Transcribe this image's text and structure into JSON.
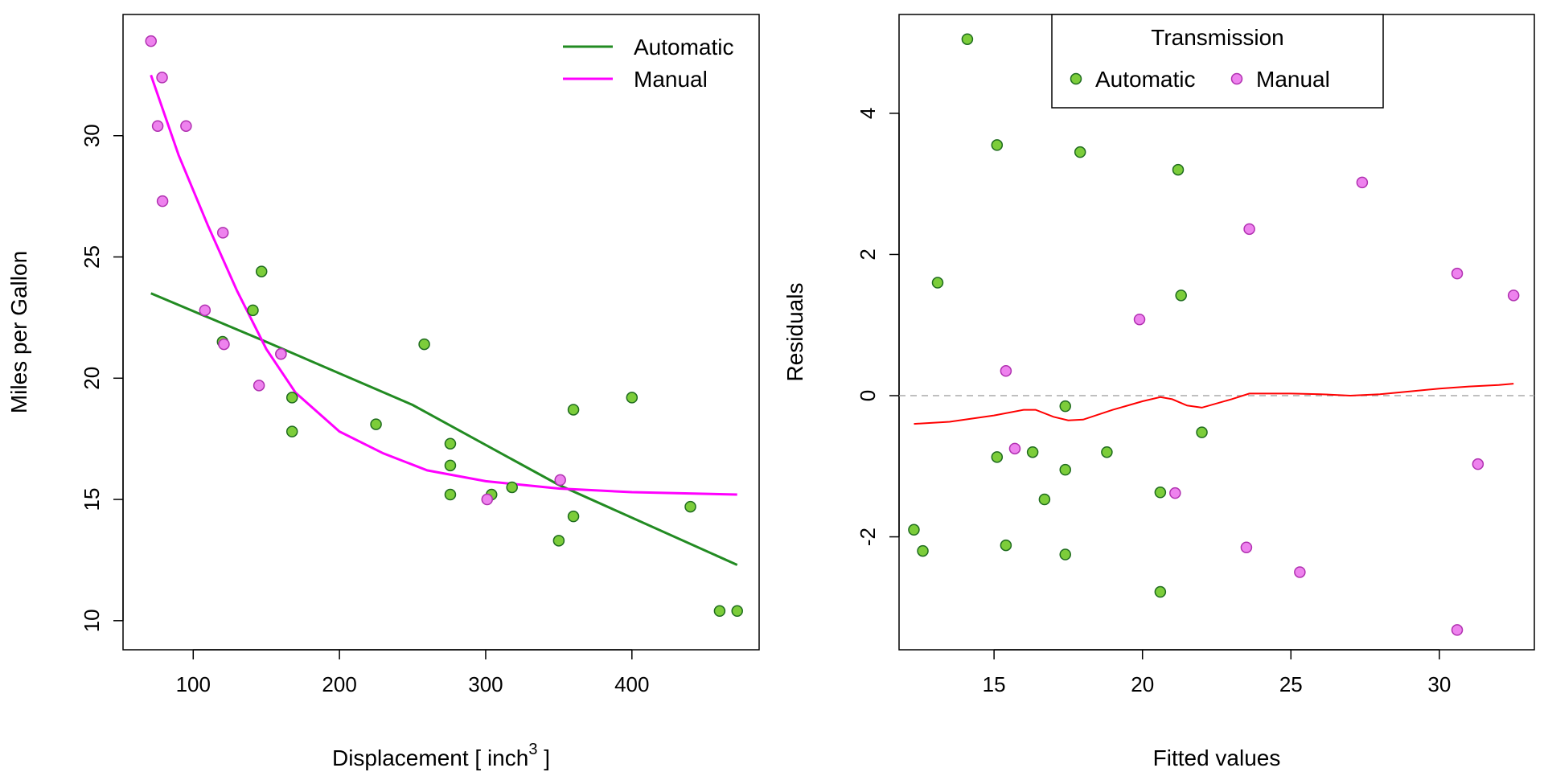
{
  "chart_data": [
    {
      "type": "scatter",
      "xlabel": "Displacement [ inch",
      "xlabel_superscript": "3",
      "xlabel_suffix": " ]",
      "ylabel": "Miles per Gallon",
      "xlim": [
        52,
        487
      ],
      "ylim": [
        8.8,
        35.0
      ],
      "xticks": [
        100,
        200,
        300,
        400
      ],
      "yticks": [
        10,
        15,
        20,
        25,
        30
      ],
      "grid": false,
      "legend": {
        "position": "top-right",
        "entries": [
          {
            "label": "Automatic",
            "color": "#228B22"
          },
          {
            "label": "Manual",
            "color": "#FF00FF"
          }
        ]
      },
      "series": [
        {
          "name": "Automatic",
          "point_color": "#7CCD3A",
          "edge_color": "#1E6B1E",
          "points": [
            [
              146.7,
              24.4
            ],
            [
              140.8,
              22.8
            ],
            [
              120.1,
              21.5
            ],
            [
              258,
              21.4
            ],
            [
              400,
              19.2
            ],
            [
              167.6,
              19.2
            ],
            [
              225,
              18.1
            ],
            [
              360,
              18.7
            ],
            [
              167.6,
              17.8
            ],
            [
              275.8,
              17.3
            ],
            [
              275.8,
              16.4
            ],
            [
              304,
              15.2
            ],
            [
              318,
              15.5
            ],
            [
              275.8,
              15.2
            ],
            [
              360,
              14.3
            ],
            [
              440,
              14.7
            ],
            [
              350,
              13.3
            ],
            [
              460,
              10.4
            ],
            [
              472,
              10.4
            ]
          ]
        },
        {
          "name": "Manual",
          "point_color": "#EE82EE",
          "edge_color": "#B030B0",
          "points": [
            [
              71.1,
              33.9
            ],
            [
              78.7,
              32.4
            ],
            [
              75.7,
              30.4
            ],
            [
              95.1,
              30.4
            ],
            [
              79,
              27.3
            ],
            [
              120.3,
              26.0
            ],
            [
              108,
              22.8
            ],
            [
              160,
              21.0
            ],
            [
              121,
              21.4
            ],
            [
              145,
              19.7
            ],
            [
              351,
              15.8
            ],
            [
              301,
              15.0
            ],
            [
              160,
              21.0
            ]
          ]
        }
      ],
      "fit_lines": [
        {
          "name": "Automatic",
          "color": "#228B22",
          "points": [
            [
              71.1,
              23.5
            ],
            [
              150,
              21.5
            ],
            [
              250,
              18.9
            ],
            [
              350,
              15.6
            ],
            [
              472,
              12.3
            ]
          ]
        },
        {
          "name": "Manual",
          "color": "#FF00FF",
          "points": [
            [
              71.1,
              32.5
            ],
            [
              90,
              29.2
            ],
            [
              110,
              26.3
            ],
            [
              130,
              23.6
            ],
            [
              150,
              21.2
            ],
            [
              170,
              19.4
            ],
            [
              200,
              17.8
            ],
            [
              230,
              16.9
            ],
            [
              260,
              16.2
            ],
            [
              300,
              15.75
            ],
            [
              350,
              15.45
            ],
            [
              400,
              15.3
            ],
            [
              472,
              15.2
            ]
          ]
        }
      ]
    },
    {
      "type": "scatter",
      "xlabel": "Fitted values",
      "ylabel": "Residuals",
      "xlim": [
        11.8,
        33.2
      ],
      "ylim": [
        -3.6,
        5.4
      ],
      "xticks": [
        15,
        20,
        25,
        30
      ],
      "yticks": [
        -2,
        0,
        2,
        4
      ],
      "grid": false,
      "zero_line": {
        "y": 0,
        "color": "#AAAAAA",
        "style": "dashed"
      },
      "legend": {
        "position": "top",
        "title": "Transmission",
        "entries": [
          {
            "label": "Automatic",
            "color": "#7CCD3A"
          },
          {
            "label": "Manual",
            "color": "#EE82EE"
          }
        ]
      },
      "series": [
        {
          "name": "Automatic",
          "point_color": "#7CCD3A",
          "edge_color": "#1E6B1E",
          "points": [
            [
              12.3,
              -1.9
            ],
            [
              12.6,
              -2.2
            ],
            [
              13.1,
              1.6
            ],
            [
              14.1,
              5.05
            ],
            [
              15.1,
              3.55
            ],
            [
              15.1,
              -0.87
            ],
            [
              15.4,
              -2.12
            ],
            [
              16.3,
              -0.8
            ],
            [
              16.7,
              -1.47
            ],
            [
              17.4,
              -0.15
            ],
            [
              17.4,
              -1.05
            ],
            [
              17.4,
              -2.25
            ],
            [
              17.9,
              3.45
            ],
            [
              18.8,
              -0.8
            ],
            [
              20.6,
              -1.37
            ],
            [
              20.6,
              -2.78
            ],
            [
              21.2,
              3.2
            ],
            [
              21.3,
              1.42
            ],
            [
              22.0,
              -0.52
            ]
          ]
        },
        {
          "name": "Manual",
          "point_color": "#EE82EE",
          "edge_color": "#B030B0",
          "points": [
            [
              15.4,
              0.35
            ],
            [
              15.7,
              -0.75
            ],
            [
              19.9,
              1.08
            ],
            [
              21.1,
              -1.38
            ],
            [
              23.5,
              -2.15
            ],
            [
              23.6,
              2.36
            ],
            [
              25.3,
              -2.5
            ],
            [
              27.4,
              3.02
            ],
            [
              30.6,
              1.73
            ],
            [
              30.6,
              -3.32
            ],
            [
              31.3,
              -0.97
            ],
            [
              32.5,
              1.42
            ]
          ]
        }
      ],
      "smooth_line": {
        "color": "#FF0000",
        "points": [
          [
            12.3,
            -0.4
          ],
          [
            13.5,
            -0.37
          ],
          [
            15.0,
            -0.28
          ],
          [
            16.0,
            -0.2
          ],
          [
            16.4,
            -0.2
          ],
          [
            17.0,
            -0.3
          ],
          [
            17.5,
            -0.35
          ],
          [
            18.0,
            -0.34
          ],
          [
            19.0,
            -0.2
          ],
          [
            20.0,
            -0.08
          ],
          [
            20.6,
            -0.02
          ],
          [
            21.0,
            -0.05
          ],
          [
            21.5,
            -0.14
          ],
          [
            22.0,
            -0.17
          ],
          [
            23.0,
            -0.05
          ],
          [
            23.6,
            0.03
          ],
          [
            25.0,
            0.03
          ],
          [
            26.0,
            0.02
          ],
          [
            27.0,
            0.0
          ],
          [
            28.0,
            0.02
          ],
          [
            29.0,
            0.06
          ],
          [
            30.0,
            0.1
          ],
          [
            31.0,
            0.13
          ],
          [
            32.0,
            0.15
          ],
          [
            32.5,
            0.17
          ]
        ]
      }
    }
  ]
}
